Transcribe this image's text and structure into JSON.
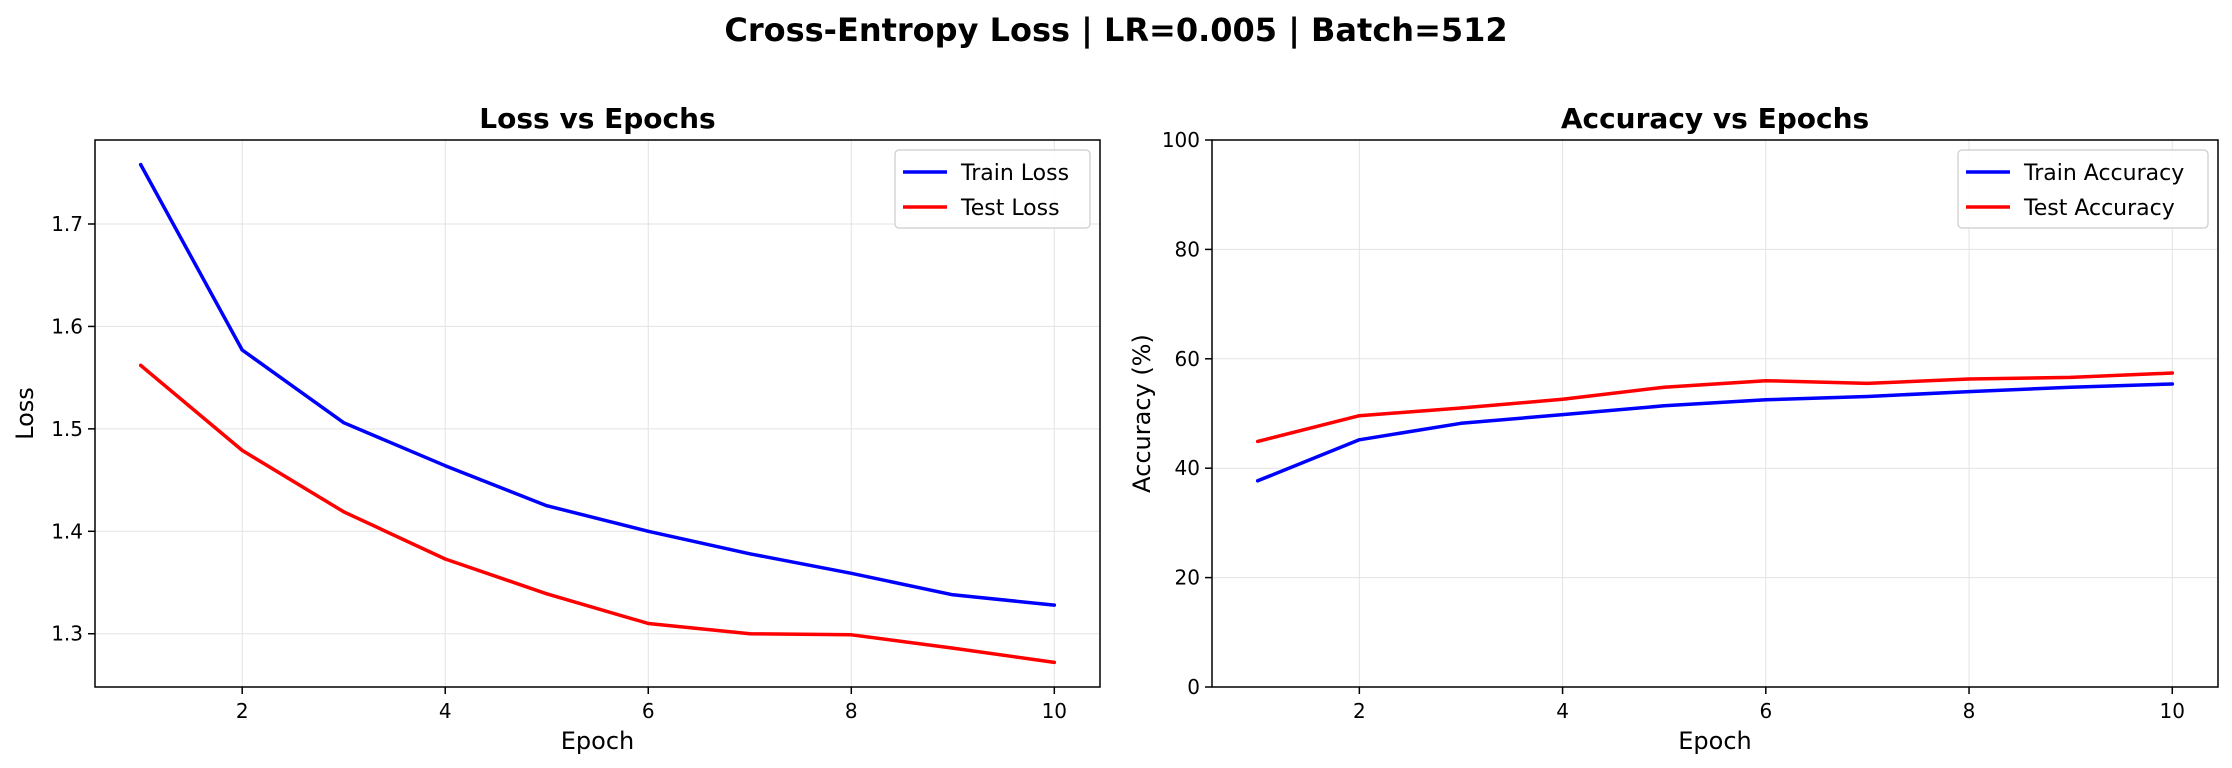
{
  "suptitle": "Cross-Entropy Loss | LR=0.005 | Batch=512",
  "chart_data": [
    {
      "type": "line",
      "title": "Loss vs Epochs",
      "xlabel": "Epoch",
      "ylabel": "Loss",
      "x": [
        1,
        2,
        3,
        4,
        5,
        6,
        7,
        8,
        9,
        10
      ],
      "xlim": [
        0.55,
        10.45
      ],
      "ylim": [
        1.248,
        1.782
      ],
      "xticks": [
        2,
        4,
        6,
        8,
        10
      ],
      "yticks": [
        1.3,
        1.4,
        1.5,
        1.6,
        1.7
      ],
      "ytick_decimals": 1,
      "grid": true,
      "legend_position": "top-right",
      "series": [
        {
          "name": "Train Loss",
          "color": "#0000ff",
          "values": [
            1.758,
            1.577,
            1.506,
            1.464,
            1.425,
            1.4,
            1.378,
            1.359,
            1.338,
            1.328
          ]
        },
        {
          "name": "Test Loss",
          "color": "#ff0000",
          "values": [
            1.562,
            1.479,
            1.419,
            1.373,
            1.339,
            1.31,
            1.3,
            1.299,
            1.286,
            1.272
          ]
        }
      ]
    },
    {
      "type": "line",
      "title": "Accuracy vs Epochs",
      "xlabel": "Epoch",
      "ylabel": "Accuracy (%)",
      "x": [
        1,
        2,
        3,
        4,
        5,
        6,
        7,
        8,
        9,
        10
      ],
      "xlim": [
        0.55,
        10.45
      ],
      "ylim": [
        0,
        100
      ],
      "xticks": [
        2,
        4,
        6,
        8,
        10
      ],
      "yticks": [
        0,
        20,
        40,
        60,
        80,
        100
      ],
      "ytick_decimals": 0,
      "grid": true,
      "legend_position": "top-right",
      "series": [
        {
          "name": "Train Accuracy",
          "color": "#0000ff",
          "values": [
            37.7,
            45.2,
            48.2,
            49.8,
            51.4,
            52.5,
            53.1,
            54.0,
            54.8,
            55.4
          ]
        },
        {
          "name": "Test Accuracy",
          "color": "#ff0000",
          "values": [
            44.9,
            49.6,
            51.0,
            52.6,
            54.8,
            56.0,
            55.5,
            56.3,
            56.6,
            57.4
          ]
        }
      ]
    }
  ]
}
